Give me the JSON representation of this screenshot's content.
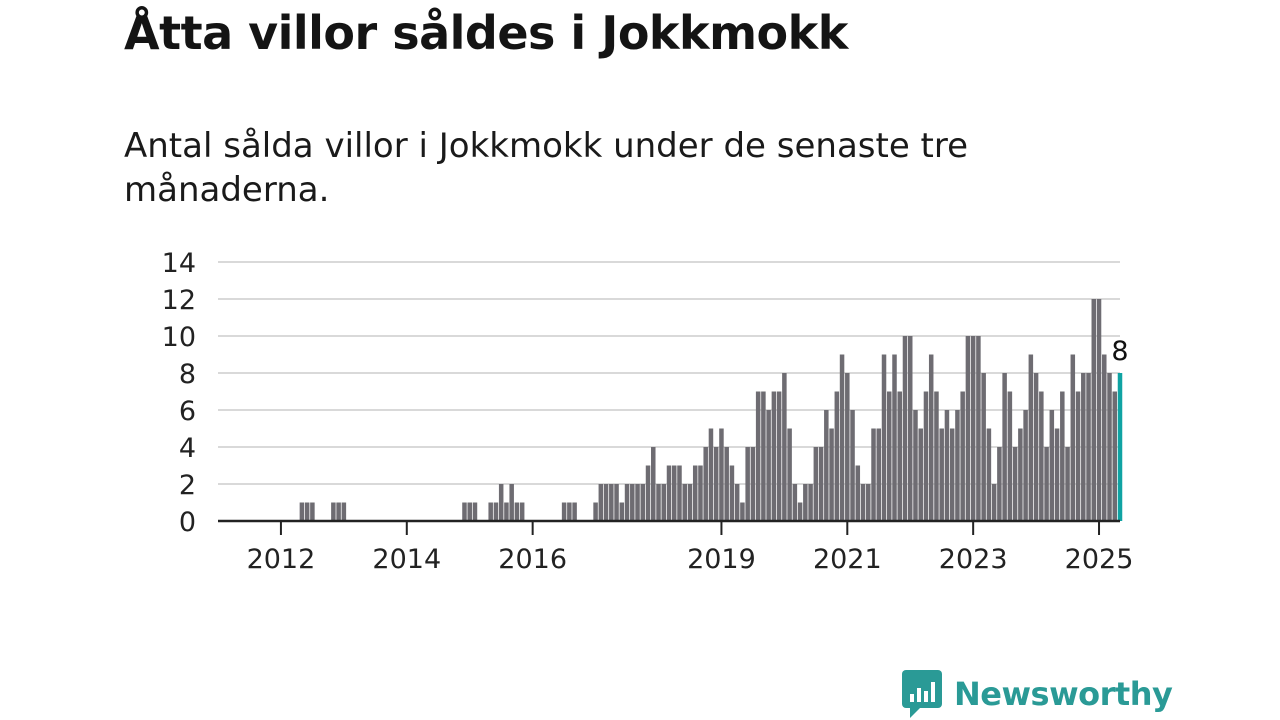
{
  "title": "Åtta villor såldes i Jokkmokk",
  "subtitle": "Antal sålda villor i Jokkmokk under de senaste tre månaderna.",
  "colors": {
    "bar": "#6e6c72",
    "highlight": "#0fa3a3",
    "grid": "#d9d9d9",
    "axis": "#222222",
    "brand": "#2a9a96"
  },
  "chart_data": {
    "type": "bar",
    "x_start": "2011-01",
    "x_end": "2025-05",
    "ylim": [
      0,
      14
    ],
    "yticks": [
      0,
      2,
      4,
      6,
      8,
      10,
      12,
      14
    ],
    "xticks": [
      "2012",
      "2014",
      "2016",
      "2019",
      "2021",
      "2023",
      "2025"
    ],
    "grid": true,
    "highlight_label": "8",
    "series": [
      {
        "start": "2011-01",
        "values": [
          0,
          0,
          0,
          0,
          0,
          0,
          0,
          0,
          0,
          0,
          0,
          0,
          0,
          0,
          0,
          0,
          1,
          1,
          1,
          0,
          0,
          0,
          1,
          1,
          1,
          0,
          0,
          0,
          0,
          0,
          0,
          0,
          0,
          0,
          0,
          0,
          0,
          0,
          0,
          0,
          0,
          0,
          0,
          0,
          0,
          0,
          0,
          1,
          1,
          1,
          0,
          0,
          1,
          1,
          2,
          1,
          2,
          1,
          1,
          0,
          0,
          0,
          0,
          0,
          0,
          0,
          1,
          1,
          1,
          0,
          0,
          0,
          1,
          2,
          2,
          2,
          2,
          1,
          2,
          2,
          2,
          2,
          3,
          4,
          2,
          2,
          3,
          3,
          3,
          2,
          2,
          3,
          3,
          4,
          5,
          4,
          5,
          4,
          3,
          2,
          1,
          4,
          4,
          7,
          7,
          6,
          7,
          7,
          8,
          5,
          2,
          1,
          2,
          2,
          4,
          4,
          6,
          5,
          7,
          9,
          8,
          6,
          3,
          2,
          2,
          5,
          5,
          9,
          7,
          9,
          7,
          10,
          10,
          6,
          5,
          7,
          9,
          7,
          5,
          6,
          5,
          6,
          7,
          10,
          10,
          10,
          8,
          5,
          2,
          4,
          8,
          7,
          4,
          5,
          6,
          9,
          8,
          7,
          4,
          6,
          5,
          7,
          4,
          9,
          7,
          8,
          8,
          12,
          12,
          9,
          8,
          7,
          8
        ]
      }
    ]
  },
  "brand": {
    "name": "Newsworthy"
  }
}
